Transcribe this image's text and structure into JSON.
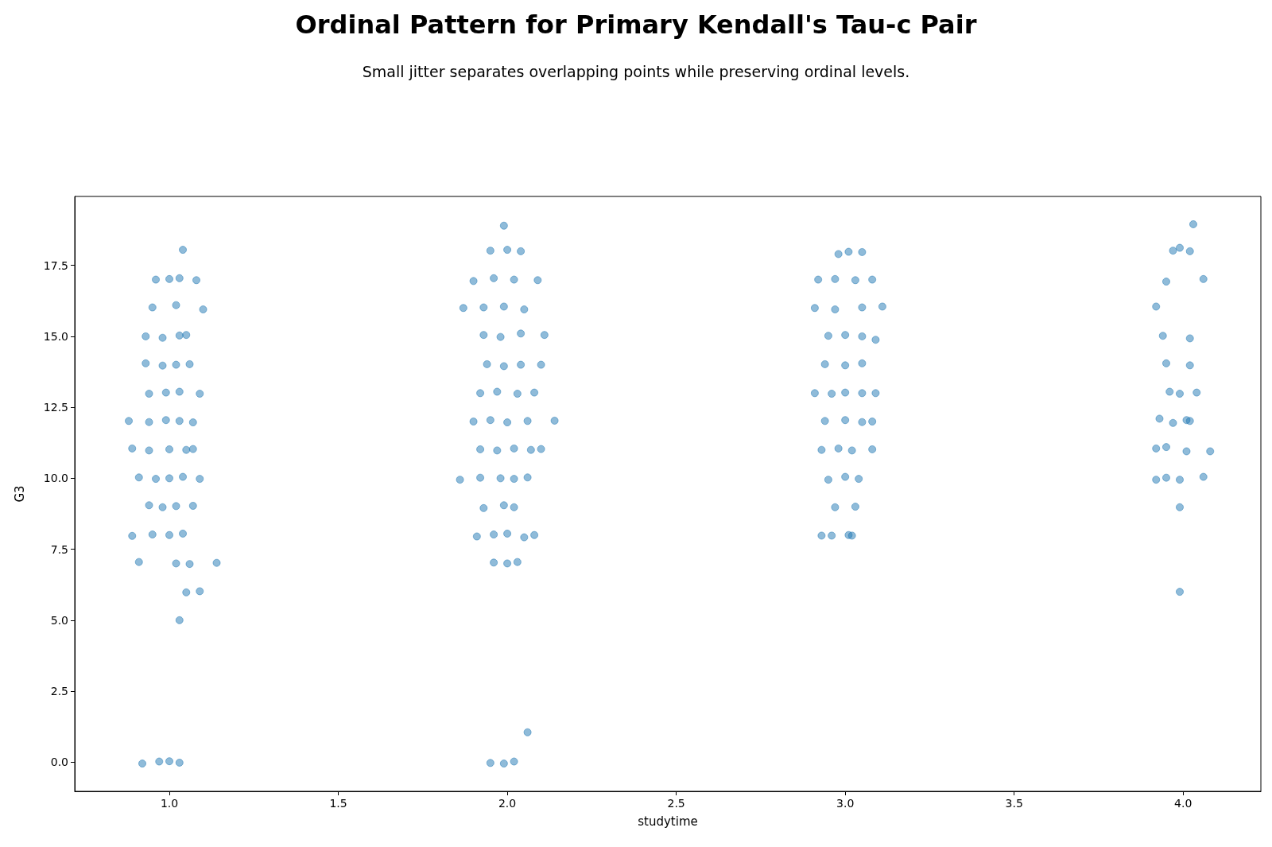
{
  "chart_data": {
    "type": "scatter",
    "title": "Ordinal Pattern for Primary Kendall's Tau-c Pair",
    "subtitle": "Small jitter separates overlapping points while preserving ordinal levels.",
    "xlabel": "studytime",
    "ylabel": "G3",
    "marker": "circle",
    "grid": false,
    "xlim": [
      0.72,
      4.23
    ],
    "ylim": [
      -1.03,
      19.93
    ],
    "xticks": [
      {
        "value": 1,
        "label": "1.0"
      },
      {
        "value": 1.5,
        "label": "1.5"
      },
      {
        "value": 2,
        "label": "2.0"
      },
      {
        "value": 2.5,
        "label": "2.5"
      },
      {
        "value": 3,
        "label": "3.0"
      },
      {
        "value": 3.5,
        "label": "3.5"
      },
      {
        "value": 4,
        "label": "4.0"
      }
    ],
    "yticks": [
      {
        "value": 0,
        "label": "0.0"
      },
      2.5,
      {
        "value": 5,
        "label": "5.0"
      },
      7.5,
      {
        "value": 10,
        "label": "10.0"
      },
      12.5,
      {
        "value": 15,
        "label": "15.0"
      },
      17.5
    ],
    "series": [
      {
        "color": "#1f77b4",
        "x": [
          0.92,
          0.97,
          1.0,
          1.03,
          1.03,
          1.05,
          1.09,
          0.91,
          1.02,
          1.06,
          1.14,
          0.89,
          0.95,
          1.0,
          1.04,
          0.94,
          0.98,
          1.02,
          1.07,
          0.91,
          0.96,
          1.0,
          1.04,
          1.09,
          0.89,
          0.94,
          1.0,
          1.05,
          1.07,
          0.88,
          0.94,
          0.99,
          1.03,
          1.07,
          0.94,
          0.99,
          1.03,
          1.09,
          0.93,
          0.98,
          1.02,
          1.06,
          0.93,
          0.98,
          1.03,
          1.05,
          0.95,
          1.02,
          1.1,
          0.96,
          1.0,
          1.03,
          1.08,
          1.04,
          1.95,
          1.99,
          2.02,
          2.06,
          1.96,
          2.0,
          2.03,
          1.91,
          1.96,
          2.0,
          2.05,
          2.08,
          1.93,
          1.99,
          2.02,
          1.86,
          1.92,
          1.98,
          2.02,
          2.06,
          1.92,
          1.97,
          2.02,
          2.07,
          2.1,
          1.9,
          1.95,
          2.0,
          2.06,
          2.14,
          1.92,
          1.97,
          2.03,
          2.08,
          1.94,
          1.99,
          2.04,
          2.1,
          1.93,
          1.98,
          2.04,
          2.11,
          1.87,
          1.93,
          1.99,
          2.05,
          1.9,
          1.96,
          2.02,
          2.09,
          1.95,
          2.0,
          2.04,
          1.99,
          2.93,
          2.96,
          3.01,
          3.02,
          2.97,
          3.03,
          2.95,
          3.0,
          3.04,
          2.93,
          2.98,
          3.02,
          3.08,
          2.94,
          3.0,
          3.05,
          3.08,
          2.91,
          2.96,
          3.0,
          3.05,
          3.09,
          2.94,
          3.0,
          3.05,
          2.95,
          3.0,
          3.05,
          3.09,
          2.91,
          2.97,
          3.05,
          3.11,
          2.92,
          2.97,
          3.03,
          3.08,
          2.98,
          3.01,
          3.05,
          3.99,
          3.99,
          3.92,
          3.95,
          3.99,
          4.06,
          3.92,
          3.95,
          4.01,
          4.08,
          3.93,
          3.97,
          4.01,
          4.02,
          3.96,
          3.99,
          4.04,
          3.95,
          4.02,
          3.94,
          4.02,
          3.92,
          3.95,
          4.06,
          3.97,
          3.99,
          4.02,
          4.03
        ],
        "values": [
          -0.05,
          0.02,
          0.03,
          -0.02,
          5.0,
          5.98,
          6.02,
          7.05,
          7.0,
          6.98,
          7.02,
          7.97,
          8.02,
          8.0,
          8.05,
          9.05,
          8.98,
          9.02,
          9.03,
          10.03,
          9.98,
          10.0,
          10.05,
          9.98,
          11.05,
          10.98,
          11.02,
          11.0,
          11.03,
          12.02,
          11.98,
          12.05,
          12.02,
          11.97,
          12.98,
          13.02,
          13.05,
          12.98,
          14.05,
          13.97,
          14.0,
          14.02,
          15.0,
          14.95,
          15.03,
          15.05,
          16.02,
          16.1,
          15.95,
          17.0,
          17.02,
          17.05,
          16.98,
          18.05,
          -0.03,
          -0.05,
          0.02,
          1.05,
          7.03,
          7.0,
          7.05,
          7.95,
          8.02,
          8.05,
          7.92,
          8.0,
          8.95,
          9.05,
          8.98,
          9.95,
          10.02,
          10.0,
          9.98,
          10.03,
          11.02,
          10.98,
          11.05,
          11.0,
          11.03,
          12.0,
          12.05,
          11.97,
          12.02,
          12.03,
          13.0,
          13.05,
          12.98,
          13.02,
          14.02,
          13.95,
          14.0,
          14.0,
          15.05,
          14.98,
          15.1,
          15.05,
          16.0,
          16.02,
          16.05,
          15.95,
          16.95,
          17.05,
          17.0,
          16.98,
          18.02,
          18.05,
          18.0,
          18.9,
          7.98,
          7.98,
          8.0,
          7.98,
          8.98,
          9.0,
          9.95,
          10.05,
          9.98,
          11.0,
          11.05,
          10.98,
          11.02,
          12.02,
          12.05,
          11.98,
          12.0,
          13.0,
          12.98,
          13.02,
          13.0,
          13.0,
          14.02,
          13.98,
          14.05,
          15.02,
          15.05,
          15.0,
          14.88,
          16.0,
          15.95,
          16.02,
          16.05,
          17.0,
          17.02,
          16.98,
          17.0,
          17.9,
          17.98,
          17.97,
          6.0,
          8.98,
          9.95,
          10.02,
          9.95,
          10.05,
          11.05,
          11.1,
          10.95,
          10.95,
          12.1,
          11.95,
          12.05,
          12.02,
          13.05,
          12.98,
          13.02,
          14.05,
          13.98,
          15.02,
          14.93,
          16.05,
          16.93,
          17.02,
          18.02,
          18.12,
          18.0,
          18.95
        ]
      }
    ]
  }
}
